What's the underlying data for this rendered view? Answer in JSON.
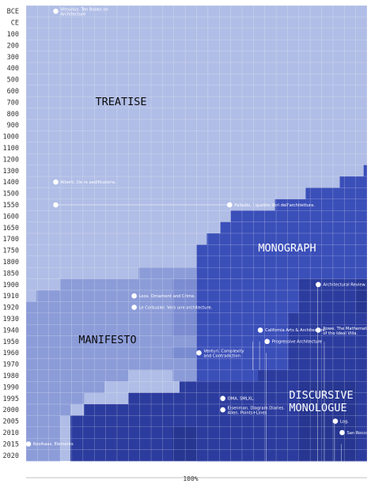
{
  "chart_data": {
    "type": "area",
    "y_ticks": [
      "BCE",
      "CE",
      "100",
      "200",
      "300",
      "400",
      "500",
      "600",
      "700",
      "800",
      "900",
      "1000",
      "1100",
      "1200",
      "1300",
      "1400",
      "1500",
      "1550",
      "1600",
      "1650",
      "1700",
      "1750",
      "1800",
      "1850",
      "1900",
      "1910",
      "1920",
      "1930",
      "1940",
      "1950",
      "1960",
      "1970",
      "1980",
      "1990",
      "1995",
      "2000",
      "2005",
      "2010",
      "2015",
      "2020"
    ],
    "x_label": "100%",
    "xlim": [
      0,
      100
    ],
    "colors": {
      "treatise": "#b0bde6",
      "monograph": "#3b4fb9",
      "manifesto": "#8c9cd8",
      "manifesto_dark": "#6e7fcc",
      "discursive": "#2c3c9e",
      "discursive_dark": "#223186",
      "grid": "#ffffff",
      "annotation": "#ffffff"
    },
    "boundaries": {
      "monograph_start": [
        100,
        100,
        100,
        100,
        100,
        100,
        100,
        100,
        100,
        100,
        100,
        100,
        100,
        100,
        99,
        92,
        82,
        73,
        60,
        57,
        53,
        50,
        50,
        50,
        50,
        50,
        50,
        50,
        50,
        50,
        50,
        50,
        50,
        50,
        50,
        50,
        50,
        50,
        50,
        50
      ],
      "manifesto_start": [
        100,
        100,
        100,
        100,
        100,
        100,
        100,
        100,
        100,
        100,
        100,
        100,
        100,
        100,
        100,
        100,
        100,
        100,
        100,
        100,
        100,
        100,
        50,
        33,
        10,
        3,
        0,
        0,
        0,
        0,
        0,
        0,
        0,
        0,
        0,
        0,
        0,
        0,
        0,
        0
      ],
      "manifesto_end": [
        0,
        0,
        0,
        0,
        0,
        0,
        0,
        0,
        0,
        0,
        0,
        0,
        0,
        0,
        0,
        0,
        0,
        0,
        0,
        0,
        0,
        0,
        47,
        50,
        50,
        50,
        50,
        50,
        50,
        43,
        43,
        43,
        30,
        23,
        17,
        13,
        10,
        10,
        10,
        10
      ],
      "discursive_start": [
        100,
        100,
        100,
        100,
        100,
        100,
        100,
        100,
        100,
        100,
        100,
        100,
        100,
        100,
        100,
        100,
        100,
        100,
        100,
        100,
        100,
        100,
        100,
        100,
        80,
        80,
        80,
        77,
        77,
        77,
        77,
        77,
        68,
        45,
        30,
        17,
        13,
        13,
        13,
        13
      ]
    },
    "regions": [
      {
        "label": "TREATISE"
      },
      {
        "label": "MONOGRAPH"
      },
      {
        "label": "MANIFESTO"
      },
      {
        "label": "DISCURSIVE",
        "label2": "MONOLOGUE"
      }
    ],
    "annotations": [
      {
        "text": "Vitruvius. Ten Books on",
        "text2": "Architecture",
        "year": "BCE",
        "x": 8
      },
      {
        "text": "Alberti. De re aedificatoria.",
        "text2": "",
        "year": "1400",
        "x": 8
      },
      {
        "text": "",
        "text2": "",
        "year": "1550",
        "x": 8
      },
      {
        "text": "Palladio. I quattro libri dell'architettura.",
        "text2": "",
        "year": "1550",
        "x": 59
      },
      {
        "text": "Loos. Ornament and Crime.",
        "text2": "",
        "year": "1910",
        "x": 31
      },
      {
        "text": "Le Corbusier. Vers une architecture.",
        "text2": "",
        "year": "1920",
        "x": 31
      },
      {
        "text": "Architectural Review.",
        "text2": "",
        "year": "1900",
        "x": 85
      },
      {
        "text": "Rowe. The Mathematics",
        "text2": "of the Ideal Villa.",
        "year": "1940",
        "x": 85
      },
      {
        "text": "California Arts & Architecture.",
        "text2": "",
        "year": "1940",
        "x": 68
      },
      {
        "text": "Progressive Architecture",
        "text2": "",
        "year": "1950",
        "x": 70
      },
      {
        "text": "Venturi. Complexity",
        "text2": "and Contradiction",
        "year": "1960",
        "x": 50
      },
      {
        "text": "OMA. SMLXL.",
        "text2": "",
        "year": "1995",
        "x": 57
      },
      {
        "text": "Eisenman. Diagram Diaries.",
        "text2": "Allen. Points+Lines",
        "year": "2000",
        "x": 57
      },
      {
        "text": "Log.",
        "text2": "",
        "year": "2005",
        "x": 90
      },
      {
        "text": "San Rocco.",
        "text2": "",
        "year": "2010",
        "x": 92
      },
      {
        "text": "Koolhaas. Elements",
        "text2": "",
        "year": "2015",
        "x": 0
      }
    ]
  }
}
